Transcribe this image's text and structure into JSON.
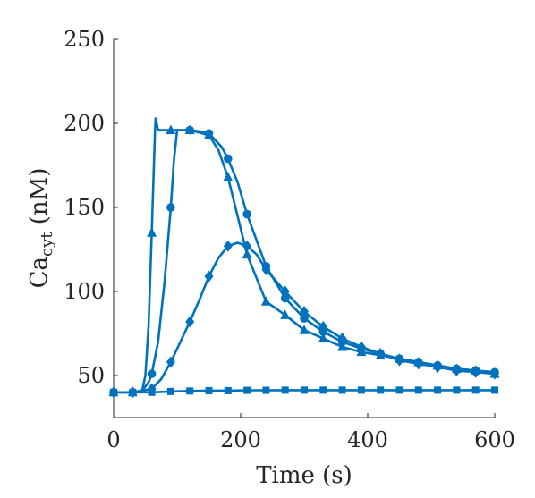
{
  "chart_data": {
    "type": "line",
    "title": "",
    "xlabel": "Time (s)",
    "ylabel": {
      "main": "Ca",
      "sub": "cyt",
      "unit": " (nM)"
    },
    "xlim": [
      0,
      600
    ],
    "ylim": [
      25,
      250
    ],
    "xticks": [
      0,
      200,
      400,
      600
    ],
    "yticks": [
      50,
      100,
      150,
      200,
      250
    ],
    "grid": false,
    "legend": "none",
    "color": "#0072BD",
    "series": [
      {
        "marker": "triangle",
        "x": [
          0,
          30,
          45,
          50,
          55,
          60,
          63,
          65,
          66,
          70,
          80,
          90,
          100,
          120,
          150,
          165,
          180,
          195,
          210,
          240,
          270,
          300,
          330,
          360,
          390,
          420,
          450,
          480,
          510,
          540,
          570,
          600
        ],
        "values": [
          40,
          40,
          41,
          50,
          80,
          135,
          170,
          195,
          203,
          196,
          196,
          196,
          196,
          196,
          193,
          184,
          168,
          145,
          122,
          94,
          86,
          77,
          72,
          67,
          64,
          62,
          60,
          58,
          56,
          54,
          53,
          51
        ],
        "marker_x": [
          0,
          30,
          60,
          90,
          120,
          150,
          180,
          210,
          240,
          270,
          300,
          330,
          360,
          390,
          420,
          450,
          480,
          510,
          540,
          570,
          600
        ],
        "marker_values": [
          40,
          40,
          135,
          196,
          196,
          193,
          168,
          122,
          94,
          86,
          77,
          72,
          67,
          64,
          62,
          60,
          58,
          56,
          54,
          53,
          51
        ]
      },
      {
        "marker": "circle",
        "x": [
          0,
          30,
          45,
          55,
          60,
          70,
          80,
          90,
          95,
          100,
          110,
          120,
          140,
          150,
          160,
          170,
          180,
          195,
          210,
          240,
          270,
          300,
          330,
          360,
          390,
          420,
          450,
          480,
          510,
          540,
          570,
          600
        ],
        "values": [
          40,
          40,
          41,
          46,
          51,
          70,
          105,
          150,
          178,
          196,
          196,
          196,
          195,
          194,
          190,
          186,
          179,
          165,
          146,
          115,
          96,
          84,
          76,
          70,
          66,
          63,
          60,
          58,
          56,
          54,
          53,
          52
        ],
        "marker_x": [
          0,
          30,
          60,
          90,
          120,
          150,
          180,
          210,
          240,
          270,
          300,
          330,
          360,
          390,
          420,
          450,
          480,
          510,
          540,
          570,
          600
        ],
        "marker_values": [
          40,
          40,
          51,
          150,
          196,
          194,
          179,
          146,
          115,
          96,
          84,
          76,
          70,
          66,
          63,
          60,
          58,
          56,
          54,
          53,
          52
        ]
      },
      {
        "marker": "diamond",
        "x": [
          0,
          30,
          45,
          60,
          75,
          90,
          105,
          120,
          135,
          150,
          165,
          180,
          195,
          210,
          225,
          240,
          270,
          300,
          330,
          360,
          390,
          420,
          450,
          480,
          510,
          540,
          570,
          600
        ],
        "values": [
          40,
          40,
          41,
          42,
          48,
          58,
          70,
          82,
          95,
          109,
          120,
          127,
          129,
          127,
          122,
          113,
          100,
          88,
          79,
          72,
          67,
          63,
          59,
          57,
          55,
          53,
          52,
          51
        ],
        "marker_x": [
          0,
          30,
          60,
          90,
          120,
          150,
          180,
          210,
          240,
          270,
          300,
          330,
          360,
          390,
          420,
          450,
          480,
          510,
          540,
          570,
          600
        ],
        "marker_values": [
          40,
          40,
          42,
          58,
          82,
          109,
          127,
          127,
          113,
          100,
          88,
          79,
          72,
          67,
          63,
          59,
          57,
          55,
          53,
          52,
          51
        ]
      },
      {
        "marker": "square",
        "x": [
          0,
          30,
          60,
          90,
          120,
          150,
          180,
          210,
          240,
          270,
          300,
          330,
          360,
          390,
          420,
          450,
          480,
          510,
          540,
          570,
          600
        ],
        "values": [
          40,
          40,
          40,
          40.5,
          40.8,
          41,
          41,
          41.2,
          41.2,
          41.3,
          41.3,
          41.3,
          41.3,
          41.3,
          41.3,
          41.3,
          41.3,
          41.3,
          41.3,
          41.3,
          41.3
        ],
        "marker_x": [
          0,
          30,
          60,
          90,
          120,
          150,
          180,
          210,
          240,
          270,
          300,
          330,
          360,
          390,
          420,
          450,
          480,
          510,
          540,
          570,
          600
        ],
        "marker_values": [
          40,
          40,
          40,
          40.5,
          40.8,
          41,
          41,
          41.2,
          41.2,
          41.3,
          41.3,
          41.3,
          41.3,
          41.3,
          41.3,
          41.3,
          41.3,
          41.3,
          41.3,
          41.3,
          41.3
        ]
      }
    ]
  }
}
